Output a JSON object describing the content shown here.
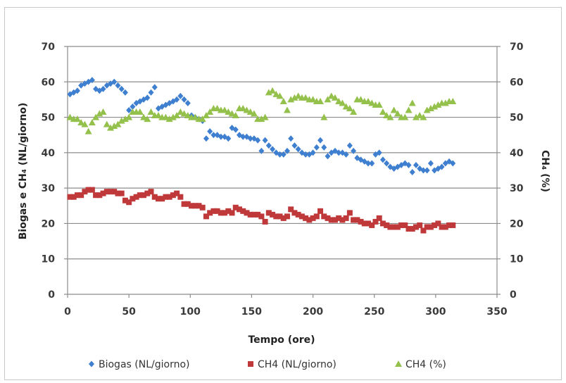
{
  "chart_data": {
    "type": "scatter",
    "xlabel": "Tempo (ore)",
    "ylabel_left": "Biogas e CH₄ (NL/giorno)",
    "ylabel_right": "CH₄ (%)",
    "xlim": [
      0,
      350
    ],
    "ylim_left": [
      0,
      70
    ],
    "ylim_right": [
      0,
      70
    ],
    "x_ticks": [
      0,
      50,
      100,
      150,
      200,
      250,
      300,
      350
    ],
    "y_ticks": [
      0,
      10,
      20,
      30,
      40,
      50,
      60,
      70
    ],
    "grid": "horizontal",
    "legend_position": "bottom",
    "series": [
      {
        "name": "Biogas (NL/giorno)",
        "marker": "diamond",
        "color": "#3f7fd0",
        "x": [
          2,
          5,
          8,
          11,
          14,
          17,
          20,
          23,
          26,
          29,
          32,
          35,
          38,
          41,
          44,
          47,
          50,
          53,
          56,
          59,
          62,
          65,
          68,
          71,
          74,
          77,
          80,
          83,
          86,
          89,
          92,
          95,
          98,
          101,
          104,
          107,
          110,
          113,
          116,
          119,
          122,
          125,
          128,
          131,
          134,
          137,
          140,
          143,
          146,
          149,
          152,
          155,
          158,
          161,
          164,
          167,
          170,
          173,
          176,
          179,
          182,
          185,
          188,
          191,
          194,
          197,
          200,
          203,
          206,
          209,
          212,
          215,
          218,
          221,
          224,
          227,
          230,
          233,
          236,
          239,
          242,
          245,
          248,
          251,
          254,
          257,
          260,
          263,
          266,
          269,
          272,
          275,
          278,
          281,
          284,
          287,
          290,
          293,
          296,
          299,
          302,
          305,
          308,
          311,
          314
        ],
        "y": [
          56.5,
          57,
          57.5,
          59,
          59.5,
          60,
          60.5,
          58,
          57.5,
          58,
          59,
          59.5,
          60,
          59,
          58,
          57,
          52,
          53,
          54,
          54.5,
          55,
          55.5,
          57,
          58.5,
          52.5,
          53,
          53.5,
          54,
          54.5,
          55,
          56,
          55,
          54,
          50.5,
          50,
          49.5,
          49,
          44,
          46,
          45,
          45,
          44.5,
          44.5,
          44,
          47,
          46.5,
          45,
          44.5,
          44.5,
          44,
          44,
          43.5,
          40.5,
          43.5,
          42,
          41,
          40,
          39.5,
          39.5,
          40.5,
          44,
          42,
          41,
          40,
          39.5,
          39.5,
          40,
          41.5,
          43.5,
          41.5,
          39,
          40,
          40.5,
          40,
          40,
          39.5,
          42,
          40.5,
          38.5,
          38,
          37.5,
          37,
          37,
          39.5,
          40,
          38,
          37,
          36,
          35.5,
          36,
          36.5,
          37,
          36.5,
          34.5,
          36.5,
          35.5,
          35,
          35,
          37,
          35,
          35.5,
          36,
          37,
          37.5,
          37
        ]
      },
      {
        "name": "CH4 (NL/giorno)",
        "marker": "square",
        "color": "#c0393a",
        "x": [
          2,
          5,
          8,
          11,
          14,
          17,
          20,
          23,
          26,
          29,
          32,
          35,
          38,
          41,
          44,
          47,
          50,
          53,
          56,
          59,
          62,
          65,
          68,
          71,
          74,
          77,
          80,
          83,
          86,
          89,
          92,
          95,
          98,
          101,
          104,
          107,
          110,
          113,
          116,
          119,
          122,
          125,
          128,
          131,
          134,
          137,
          140,
          143,
          146,
          149,
          152,
          155,
          158,
          161,
          164,
          167,
          170,
          173,
          176,
          179,
          182,
          185,
          188,
          191,
          194,
          197,
          200,
          203,
          206,
          209,
          212,
          215,
          218,
          221,
          224,
          227,
          230,
          233,
          236,
          239,
          242,
          245,
          248,
          251,
          254,
          257,
          260,
          263,
          266,
          269,
          272,
          275,
          278,
          281,
          284,
          287,
          290,
          293,
          296,
          299,
          302,
          305,
          308,
          311,
          314
        ],
        "y": [
          27.5,
          27.5,
          28,
          28,
          29,
          29.5,
          29.5,
          28,
          28,
          28.5,
          29,
          29,
          29,
          28.5,
          28.5,
          26.5,
          26,
          27,
          27.5,
          28,
          28,
          28.5,
          29,
          27.5,
          27,
          27,
          27.5,
          27.5,
          28,
          28.5,
          27.5,
          25.5,
          25.5,
          25,
          25,
          25,
          24.5,
          22,
          23,
          23.5,
          23.5,
          23,
          23,
          23.5,
          23,
          24.5,
          24,
          23.5,
          23,
          22.5,
          22.5,
          22.5,
          22,
          20.5,
          23,
          22.5,
          22,
          22,
          21.5,
          22,
          24,
          23,
          22.5,
          22,
          21.5,
          21,
          21.5,
          22,
          23.5,
          22,
          21.5,
          21,
          21,
          21.5,
          21,
          21.5,
          23,
          21,
          21,
          20.5,
          20,
          20,
          19.5,
          20.5,
          21.5,
          20,
          19.5,
          19,
          19,
          19,
          19.5,
          19.5,
          18.5,
          18.5,
          19,
          19.5,
          18,
          19,
          19,
          19.5,
          20,
          19,
          19,
          19.5,
          19.5
        ]
      },
      {
        "name": "CH4 (%)",
        "marker": "triangle",
        "color": "#94c04c",
        "axis": "right",
        "x": [
          2,
          5,
          8,
          11,
          14,
          17,
          20,
          23,
          26,
          29,
          32,
          35,
          38,
          41,
          44,
          47,
          50,
          53,
          56,
          59,
          62,
          65,
          68,
          71,
          74,
          77,
          80,
          83,
          86,
          89,
          92,
          95,
          98,
          101,
          104,
          107,
          110,
          113,
          116,
          119,
          122,
          125,
          128,
          131,
          134,
          137,
          140,
          143,
          146,
          149,
          152,
          155,
          158,
          161,
          164,
          167,
          170,
          173,
          176,
          179,
          182,
          185,
          188,
          191,
          194,
          197,
          200,
          203,
          206,
          209,
          212,
          215,
          218,
          221,
          224,
          227,
          230,
          233,
          236,
          239,
          242,
          245,
          248,
          251,
          254,
          257,
          260,
          263,
          266,
          269,
          272,
          275,
          278,
          281,
          284,
          287,
          290,
          293,
          296,
          299,
          302,
          305,
          308,
          311,
          314
        ],
        "y": [
          50,
          49.5,
          49.5,
          48.5,
          48,
          46,
          48.5,
          50,
          51,
          51.5,
          48,
          47,
          47.5,
          48,
          49,
          49.5,
          50,
          51.5,
          51.5,
          51.5,
          50,
          49.5,
          51.5,
          50.5,
          50.5,
          50,
          50,
          49.5,
          50,
          50.5,
          51.5,
          51,
          50.5,
          50,
          50,
          49.5,
          49.5,
          50.5,
          51.5,
          52.5,
          52.5,
          52,
          52,
          51.5,
          51,
          50.5,
          52.5,
          52.5,
          52,
          51.5,
          51,
          49.5,
          49.5,
          50,
          57,
          57.5,
          56.5,
          56,
          54.5,
          52,
          55,
          55.5,
          56,
          55.5,
          55.5,
          55,
          55,
          54.5,
          54.5,
          50,
          55,
          56,
          55.5,
          54.5,
          54,
          53,
          52.5,
          51.5,
          55,
          55,
          54.5,
          54.5,
          54,
          53.5,
          53.5,
          51.5,
          50.5,
          50,
          52,
          51,
          50,
          50,
          52,
          54,
          50,
          50.5,
          50,
          52,
          52.5,
          53,
          53.5,
          54,
          54,
          54.5,
          54.5
        ]
      }
    ]
  }
}
